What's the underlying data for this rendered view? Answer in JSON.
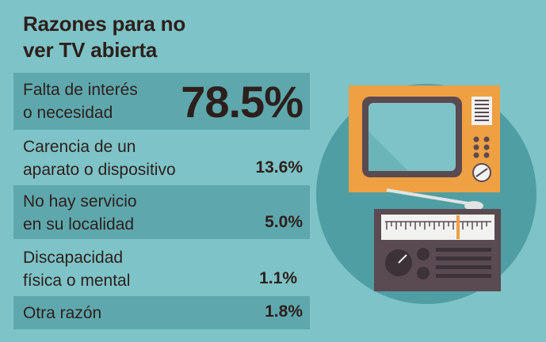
{
  "title_line1": "Razones para no",
  "title_line2": "ver TV abierta",
  "chart_data": {
    "type": "table",
    "title": "Razones para no ver TV abierta",
    "rows": [
      {
        "label_line1": "Falta de interés",
        "label_line2": "o necesidad",
        "value": 78.5,
        "display": "78.5%"
      },
      {
        "label_line1": "Carencia de un",
        "label_line2": "aparato o dispositivo",
        "value": 13.6,
        "display": "13.6%"
      },
      {
        "label_line1": "No hay servicio",
        "label_line2": "en su localidad",
        "value": 5.0,
        "display": "5.0%"
      },
      {
        "label_line1": "Discapacidad",
        "label_line2": "física o mental",
        "value": 1.1,
        "display": "1.1%"
      },
      {
        "label_line1": "Otra razón",
        "label_line2": "",
        "value": 1.8,
        "display": "1.8%"
      }
    ]
  },
  "colors": {
    "background": "#7ec3c7",
    "band": "#5ea8ad",
    "text": "#2d1f1c",
    "circle": "#4f9ea4",
    "tv_body": "#efa043",
    "screen": "#7ec3c7",
    "screen_frame": "#5a4a52",
    "radio_body": "#5a4a52",
    "dial_panel": "#f2f2f0"
  },
  "icons": [
    "television-icon",
    "radio-icon"
  ]
}
